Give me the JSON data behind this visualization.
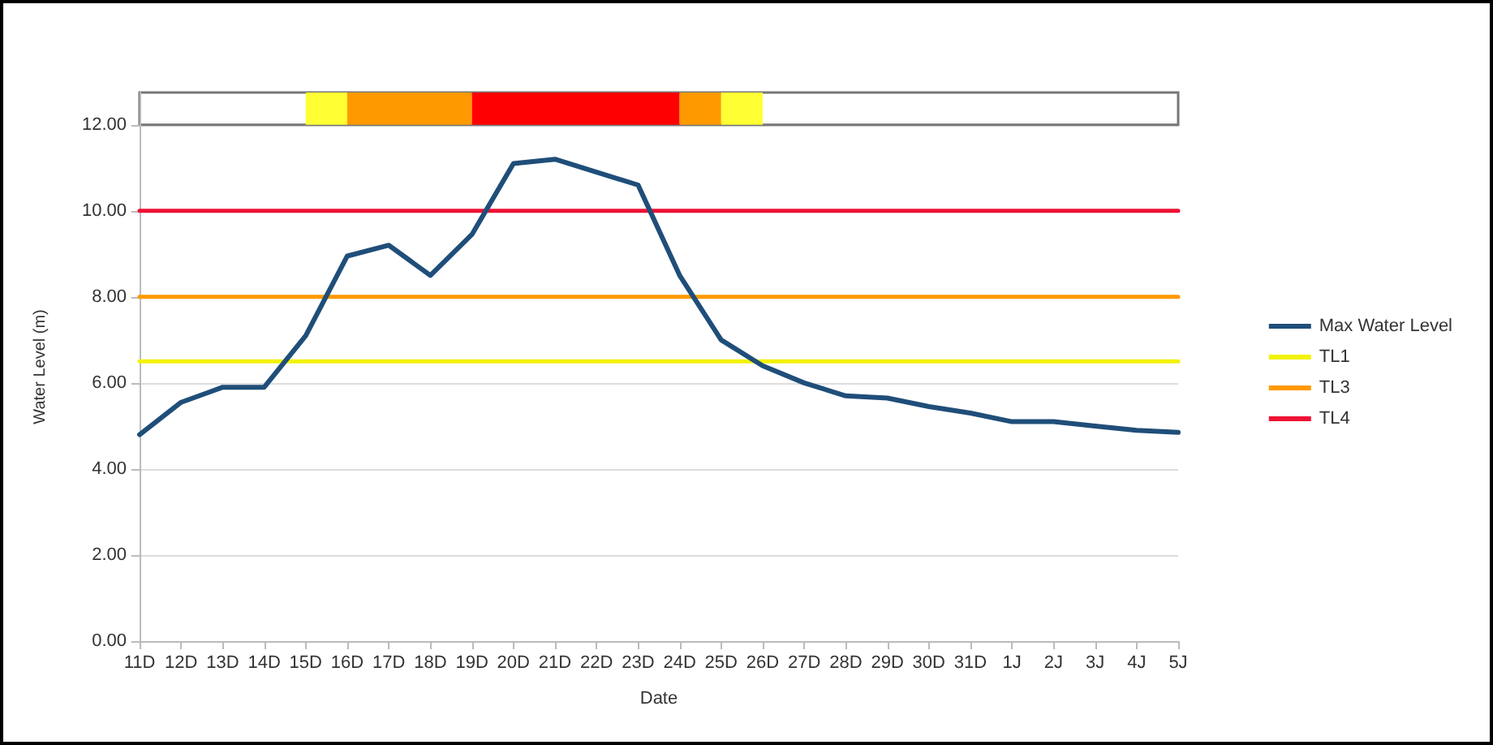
{
  "chart_data": {
    "type": "line",
    "xlabel": "Date",
    "ylabel": "Water Level (m)",
    "categories": [
      "11D",
      "12D",
      "13D",
      "14D",
      "15D",
      "16D",
      "17D",
      "18D",
      "19D",
      "20D",
      "21D",
      "22D",
      "23D",
      "24D",
      "25D",
      "26D",
      "27D",
      "28D",
      "29D",
      "30D",
      "31D",
      "1J",
      "2J",
      "3J",
      "4J",
      "5J"
    ],
    "series": [
      {
        "name": "Max Water Level",
        "color": "#1f4e79",
        "values": [
          4.8,
          5.55,
          5.9,
          5.9,
          7.1,
          8.95,
          9.2,
          8.5,
          9.45,
          11.1,
          11.2,
          10.9,
          10.6,
          8.5,
          7.0,
          6.4,
          6.0,
          5.7,
          5.65,
          5.45,
          5.3,
          5.1,
          5.1,
          5.0,
          4.9,
          4.85
        ]
      },
      {
        "name": "TL1",
        "color": "#f2f20a",
        "values": [
          6.5,
          6.5,
          6.5,
          6.5,
          6.5,
          6.5,
          6.5,
          6.5,
          6.5,
          6.5,
          6.5,
          6.5,
          6.5,
          6.5,
          6.5,
          6.5,
          6.5,
          6.5,
          6.5,
          6.5,
          6.5,
          6.5,
          6.5,
          6.5,
          6.5,
          6.5
        ]
      },
      {
        "name": "TL3",
        "color": "#ff9900",
        "values": [
          8,
          8,
          8,
          8,
          8,
          8,
          8,
          8,
          8,
          8,
          8,
          8,
          8,
          8,
          8,
          8,
          8,
          8,
          8,
          8,
          8,
          8,
          8,
          8,
          8,
          8
        ]
      },
      {
        "name": "TL4",
        "color": "#ee1133",
        "values": [
          10,
          10,
          10,
          10,
          10,
          10,
          10,
          10,
          10,
          10,
          10,
          10,
          10,
          10,
          10,
          10,
          10,
          10,
          10,
          10,
          10,
          10,
          10,
          10,
          10,
          10
        ]
      }
    ],
    "bands": [
      {
        "axis": "x",
        "from": "15D",
        "to": "16D",
        "color": "#ffff33"
      },
      {
        "axis": "x",
        "from": "16D",
        "to": "19D",
        "color": "#ff9900"
      },
      {
        "axis": "x",
        "from": "19D",
        "to": "24D",
        "color": "#ff0000"
      },
      {
        "axis": "x",
        "from": "24D",
        "to": "25D",
        "color": "#ff9900"
      },
      {
        "axis": "x",
        "from": "25D",
        "to": "26D",
        "color": "#ffff33"
      }
    ],
    "ylim": [
      0,
      12.75
    ],
    "yticks": [
      {
        "value": 0,
        "label": "0.00"
      },
      {
        "value": 2,
        "label": "2.00"
      },
      {
        "value": 4,
        "label": "4.00"
      },
      {
        "value": 6,
        "label": "6.00"
      },
      {
        "value": 8,
        "label": "8.00"
      },
      {
        "value": 10,
        "label": "10.00"
      },
      {
        "value": 12,
        "label": "12.00"
      }
    ],
    "grid": "y",
    "legend": "right",
    "marker": "none",
    "line_style": "solid"
  }
}
